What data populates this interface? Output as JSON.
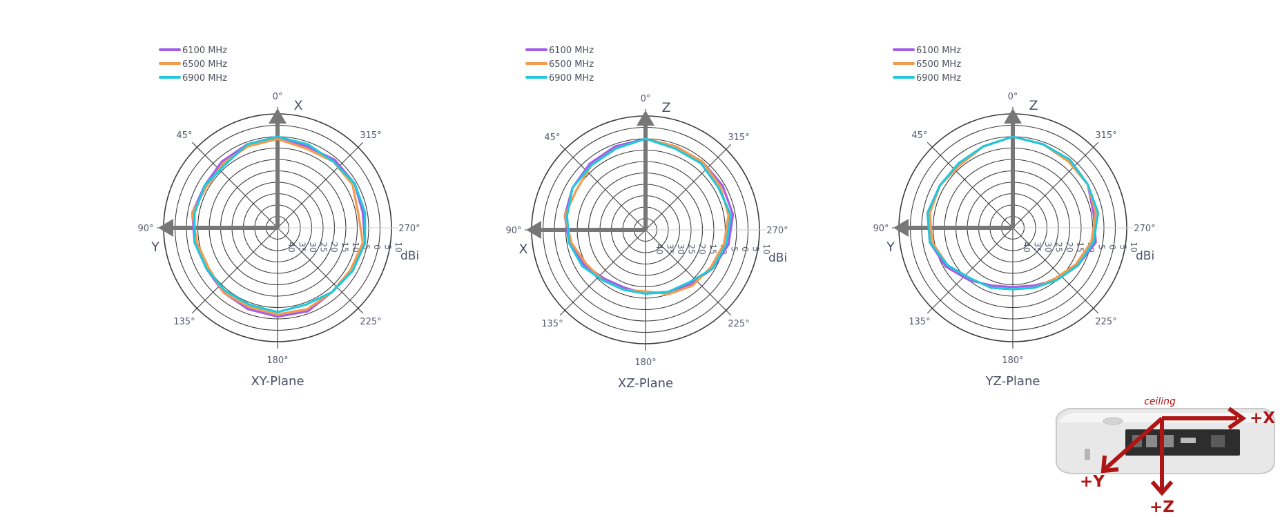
{
  "legend": [
    {
      "label": "6100 MHz",
      "color": "#a45de6"
    },
    {
      "label": "6500 MHz",
      "color": "#f39a4e"
    },
    {
      "label": "6900 MHz",
      "color": "#1fc8dc"
    }
  ],
  "angle_labels": [
    {
      "deg": 0,
      "text": "0°"
    },
    {
      "deg": 45,
      "text": "45°"
    },
    {
      "deg": 90,
      "text": "90°"
    },
    {
      "deg": 135,
      "text": "135°"
    },
    {
      "deg": 180,
      "text": "180°"
    },
    {
      "deg": 225,
      "text": "225°"
    },
    {
      "deg": 270,
      "text": "270°"
    },
    {
      "deg": 315,
      "text": "315°"
    }
  ],
  "ring_labels": [
    "40",
    "35",
    "30",
    "25",
    "20",
    "15",
    "10",
    "5",
    "0",
    "5",
    "10"
  ],
  "unit": "dBi",
  "axis_color": "#777777",
  "grid_color": "#3a3a3a",
  "chart_data": [
    {
      "type": "polar-line",
      "title": "XY-Plane",
      "axis_top_label": "X",
      "axis_left_label": "Y",
      "r_range": [
        -40,
        10
      ],
      "series": [
        {
          "name": "6100 MHz",
          "color": "#a45de6",
          "theta": [
            0,
            20,
            40,
            60,
            80,
            100,
            120,
            140,
            160,
            180,
            200,
            220,
            240,
            260,
            280,
            300,
            320,
            340
          ],
          "r": [
            0,
            -1,
            -2,
            -3,
            -2,
            -3,
            -4,
            -3,
            -2,
            -1,
            -1,
            -3,
            -2,
            -1,
            -2,
            -1,
            -1,
            -2
          ]
        },
        {
          "name": "6500 MHz",
          "color": "#f39a4e",
          "theta": [
            0,
            20,
            40,
            60,
            80,
            100,
            120,
            140,
            160,
            180,
            200,
            220,
            240,
            260,
            280,
            300,
            320,
            340
          ],
          "r": [
            -1,
            -2,
            -3,
            -4,
            -2,
            -4,
            -5,
            -3,
            -3,
            -2,
            -2,
            -3,
            -3,
            -2,
            -4,
            -2,
            -2,
            -3
          ]
        },
        {
          "name": "6900 MHz",
          "color": "#1fc8dc",
          "theta": [
            0,
            20,
            40,
            60,
            80,
            100,
            120,
            140,
            160,
            180,
            200,
            220,
            240,
            260,
            280,
            300,
            320,
            340
          ],
          "r": [
            0,
            -1,
            -4,
            -3,
            -3,
            -3,
            -4,
            -4,
            -4,
            -3,
            -4,
            -3,
            -2,
            -1,
            -1,
            -1,
            -2,
            -1
          ]
        }
      ]
    },
    {
      "type": "polar-line",
      "title": "XZ-Plane",
      "axis_top_label": "Z",
      "axis_left_label": "X",
      "r_range": [
        -40,
        10
      ],
      "series": [
        {
          "name": "6100 MHz",
          "color": "#a45de6",
          "theta": [
            0,
            20,
            40,
            60,
            80,
            100,
            120,
            140,
            160,
            180,
            200,
            220,
            240,
            260,
            280,
            300,
            320,
            340
          ],
          "r": [
            0,
            -1,
            -2,
            -3,
            -4,
            -6,
            -9,
            -12,
            -13,
            -12,
            -11,
            -9,
            -6,
            -3,
            -1,
            -1,
            -1,
            -1
          ]
        },
        {
          "name": "6500 MHz",
          "color": "#f39a4e",
          "theta": [
            0,
            20,
            40,
            60,
            80,
            100,
            120,
            140,
            160,
            180,
            200,
            220,
            240,
            260,
            280,
            300,
            320,
            340
          ],
          "r": [
            0,
            -2,
            -3,
            -5,
            -4,
            -7,
            -10,
            -11,
            -12,
            -13,
            -10,
            -8,
            -7,
            -5,
            -3,
            -2,
            -1,
            -1
          ]
        },
        {
          "name": "6900 MHz",
          "color": "#1fc8dc",
          "theta": [
            0,
            20,
            40,
            60,
            80,
            100,
            120,
            140,
            160,
            180,
            200,
            220,
            240,
            260,
            280,
            300,
            320,
            340
          ],
          "r": [
            0,
            -2,
            -3,
            -3,
            -5,
            -6,
            -8,
            -11,
            -12,
            -12,
            -11,
            -10,
            -6,
            -4,
            -2,
            -3,
            -2,
            -2
          ]
        }
      ]
    },
    {
      "type": "polar-line",
      "title": "YZ-Plane",
      "axis_top_label": "Z",
      "axis_left_label": "Y",
      "r_range": [
        -40,
        10
      ],
      "series": [
        {
          "name": "6100 MHz",
          "color": "#a45de6",
          "theta": [
            0,
            20,
            40,
            60,
            80,
            100,
            120,
            140,
            160,
            180,
            200,
            220,
            240,
            260,
            280,
            300,
            320,
            340
          ],
          "r": [
            0,
            -2,
            -3,
            -3,
            -2,
            -3,
            -6,
            -10,
            -13,
            -14,
            -13,
            -10,
            -7,
            -3,
            -4,
            -2,
            -1,
            -1
          ]
        },
        {
          "name": "6500 MHz",
          "color": "#f39a4e",
          "theta": [
            0,
            20,
            40,
            60,
            80,
            100,
            120,
            140,
            160,
            180,
            200,
            220,
            240,
            260,
            280,
            300,
            320,
            340
          ],
          "r": [
            0,
            -2,
            -4,
            -3,
            -3,
            -4,
            -7,
            -11,
            -12,
            -13,
            -12,
            -11,
            -8,
            -5,
            -3,
            -2,
            -2,
            -1
          ]
        },
        {
          "name": "6900 MHz",
          "color": "#1fc8dc",
          "theta": [
            0,
            20,
            40,
            60,
            80,
            100,
            120,
            140,
            160,
            180,
            200,
            220,
            240,
            260,
            280,
            300,
            320,
            340
          ],
          "r": [
            0,
            -2,
            -3,
            -3,
            -2,
            -3,
            -7,
            -11,
            -12,
            -13,
            -12,
            -10,
            -7,
            -4,
            -2,
            -2,
            -1,
            -1
          ]
        }
      ]
    }
  ],
  "orientation": {
    "ceiling_label": "ceiling",
    "x_label": "+X",
    "y_label": "+Y",
    "z_label": "+Z",
    "arrow_color": "#b01515"
  }
}
